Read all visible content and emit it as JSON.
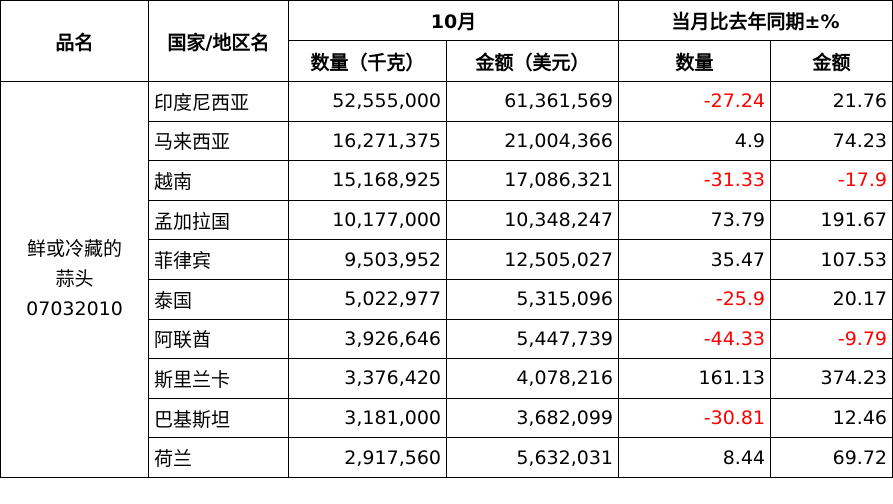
{
  "header": {
    "product": "品名",
    "country": "国家/地区名",
    "month": "10月",
    "yoy": "当月比去年同期±%",
    "qty": "数量（千克）",
    "amount": "金额（美元）",
    "yoy_qty": "数量",
    "yoy_amount": "金额"
  },
  "product": {
    "line1": "鲜或冷藏的",
    "line2": "蒜头",
    "code": "07032010"
  },
  "rows": [
    {
      "country": "印度尼西亚",
      "qty": "52,555,000",
      "amount": "61,361,569",
      "yoy_qty": "-27.24",
      "yoy_amount": "21.76"
    },
    {
      "country": "马来西亚",
      "qty": "16,271,375",
      "amount": "21,004,366",
      "yoy_qty": "4.9",
      "yoy_amount": "74.23"
    },
    {
      "country": "越南",
      "qty": "15,168,925",
      "amount": "17,086,321",
      "yoy_qty": "-31.33",
      "yoy_amount": "-17.9"
    },
    {
      "country": "孟加拉国",
      "qty": "10,177,000",
      "amount": "10,348,247",
      "yoy_qty": "73.79",
      "yoy_amount": "191.67"
    },
    {
      "country": "菲律宾",
      "qty": "9,503,952",
      "amount": "12,505,027",
      "yoy_qty": "35.47",
      "yoy_amount": "107.53"
    },
    {
      "country": "泰国",
      "qty": "5,022,977",
      "amount": "5,315,096",
      "yoy_qty": "-25.9",
      "yoy_amount": "20.17"
    },
    {
      "country": "阿联酋",
      "qty": "3,926,646",
      "amount": "5,447,739",
      "yoy_qty": "-44.33",
      "yoy_amount": "-9.79"
    },
    {
      "country": "斯里兰卡",
      "qty": "3,376,420",
      "amount": "4,078,216",
      "yoy_qty": "161.13",
      "yoy_amount": "374.23"
    },
    {
      "country": "巴基斯坦",
      "qty": "3,181,000",
      "amount": "3,682,099",
      "yoy_qty": "-30.81",
      "yoy_amount": "12.46"
    },
    {
      "country": "荷兰",
      "qty": "2,917,560",
      "amount": "5,632,031",
      "yoy_qty": "8.44",
      "yoy_amount": "69.72"
    }
  ],
  "colors": {
    "negative": "#ff0000",
    "border": "#000000"
  }
}
